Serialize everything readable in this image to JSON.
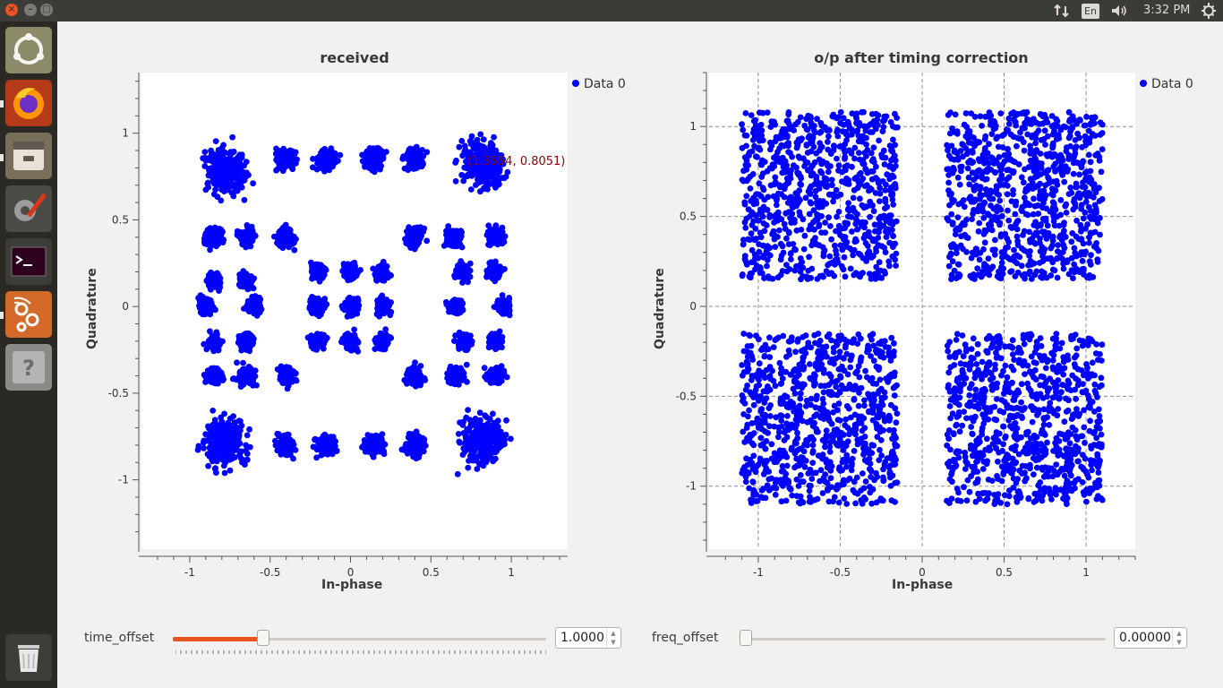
{
  "topbar": {
    "window_buttons": [
      "close",
      "minimize",
      "maximize"
    ],
    "language": "En",
    "clock": "3:32 PM",
    "icons": [
      "network-icon",
      "volume-icon",
      "power-icon"
    ]
  },
  "launcher": {
    "apps": [
      "ubuntu-dash-icon",
      "firefox-icon",
      "files-icon",
      "settings-icon",
      "terminal-icon",
      "gnuradio-icon",
      "help-icon",
      "trash-icon"
    ]
  },
  "plots": [
    {
      "title": "received",
      "xlabel": "In-phase",
      "ylabel": "Quadrature",
      "legend": "Data 0",
      "cursor_readout": "(1.3554, 0.8051)",
      "xticks": [
        "-1",
        "-0.5",
        "0",
        "0.5",
        "1"
      ],
      "yticks": [
        "1",
        "0.5",
        "0",
        "-0.5",
        "-1"
      ]
    },
    {
      "title": "o/p after timing correction",
      "xlabel": "In-phase",
      "ylabel": "Quadrature",
      "legend": "Data 0",
      "xticks": [
        "-1",
        "-0.5",
        "0",
        "0.5",
        "1"
      ],
      "yticks": [
        "1",
        "0.5",
        "0",
        "-0.5",
        "-1"
      ]
    }
  ],
  "controls": {
    "time_offset": {
      "label": "time_offset",
      "value": "1.0000",
      "level": 0.24
    },
    "freq_offset": {
      "label": "freq_offset",
      "value": "0.00000",
      "level": 0.0
    }
  },
  "chart_data": [
    {
      "type": "scatter",
      "title": "received",
      "xlabel": "In-phase",
      "ylabel": "Quadrature",
      "xlim": [
        -1.3,
        1.35
      ],
      "ylim": [
        -1.4,
        1.35
      ],
      "grid": false,
      "legend_position": "top-right",
      "series": [
        {
          "name": "Data 0",
          "color": "#0000ff",
          "clusters": [
            {
              "x": -0.78,
              "y": 0.78,
              "spread": 0.2
            },
            {
              "x": 0.82,
              "y": 0.82,
              "spread": 0.2
            },
            {
              "x": -0.78,
              "y": -0.78,
              "spread": 0.2
            },
            {
              "x": 0.82,
              "y": -0.78,
              "spread": 0.2
            },
            {
              "x": -0.85,
              "y": 0.4,
              "spread": 0.08
            },
            {
              "x": -0.65,
              "y": 0.4,
              "spread": 0.08
            },
            {
              "x": -0.4,
              "y": 0.4,
              "spread": 0.08
            },
            {
              "x": 0.4,
              "y": 0.4,
              "spread": 0.08
            },
            {
              "x": 0.65,
              "y": 0.4,
              "spread": 0.08
            },
            {
              "x": 0.9,
              "y": 0.4,
              "spread": 0.08
            },
            {
              "x": -0.85,
              "y": 0.15,
              "spread": 0.07
            },
            {
              "x": -0.65,
              "y": 0.15,
              "spread": 0.07
            },
            {
              "x": -0.2,
              "y": 0.2,
              "spread": 0.07
            },
            {
              "x": 0.0,
              "y": 0.2,
              "spread": 0.07
            },
            {
              "x": 0.2,
              "y": 0.2,
              "spread": 0.07
            },
            {
              "x": 0.7,
              "y": 0.2,
              "spread": 0.07
            },
            {
              "x": 0.9,
              "y": 0.2,
              "spread": 0.07
            },
            {
              "x": -0.9,
              "y": 0.0,
              "spread": 0.07
            },
            {
              "x": -0.6,
              "y": 0.0,
              "spread": 0.07
            },
            {
              "x": -0.2,
              "y": 0.0,
              "spread": 0.07
            },
            {
              "x": 0.0,
              "y": 0.0,
              "spread": 0.07
            },
            {
              "x": 0.2,
              "y": 0.0,
              "spread": 0.07
            },
            {
              "x": 0.65,
              "y": 0.0,
              "spread": 0.07
            },
            {
              "x": 0.95,
              "y": 0.0,
              "spread": 0.07
            },
            {
              "x": -0.85,
              "y": -0.2,
              "spread": 0.07
            },
            {
              "x": -0.65,
              "y": -0.2,
              "spread": 0.07
            },
            {
              "x": -0.2,
              "y": -0.2,
              "spread": 0.07
            },
            {
              "x": 0.0,
              "y": -0.2,
              "spread": 0.07
            },
            {
              "x": 0.2,
              "y": -0.2,
              "spread": 0.07
            },
            {
              "x": 0.7,
              "y": -0.2,
              "spread": 0.07
            },
            {
              "x": 0.9,
              "y": -0.2,
              "spread": 0.07
            },
            {
              "x": -0.85,
              "y": -0.4,
              "spread": 0.08
            },
            {
              "x": -0.65,
              "y": -0.4,
              "spread": 0.08
            },
            {
              "x": -0.4,
              "y": -0.4,
              "spread": 0.08
            },
            {
              "x": 0.4,
              "y": -0.4,
              "spread": 0.08
            },
            {
              "x": 0.65,
              "y": -0.4,
              "spread": 0.08
            },
            {
              "x": 0.9,
              "y": -0.4,
              "spread": 0.08
            },
            {
              "x": -0.4,
              "y": 0.85,
              "spread": 0.09
            },
            {
              "x": -0.15,
              "y": 0.85,
              "spread": 0.09
            },
            {
              "x": 0.15,
              "y": 0.85,
              "spread": 0.09
            },
            {
              "x": 0.4,
              "y": 0.85,
              "spread": 0.09
            },
            {
              "x": -0.4,
              "y": -0.8,
              "spread": 0.09
            },
            {
              "x": -0.15,
              "y": -0.8,
              "spread": 0.09
            },
            {
              "x": 0.15,
              "y": -0.8,
              "spread": 0.09
            },
            {
              "x": 0.4,
              "y": -0.8,
              "spread": 0.09
            }
          ]
        }
      ]
    },
    {
      "type": "scatter",
      "title": "o/p after timing correction",
      "xlabel": "In-phase",
      "ylabel": "Quadrature",
      "xlim": [
        -1.3,
        1.3
      ],
      "ylim": [
        -1.35,
        1.3
      ],
      "grid": true,
      "legend_position": "top-right",
      "series": [
        {
          "name": "Data 0",
          "color": "#0000ff",
          "regions": [
            {
              "x": [
                -1.1,
                -0.15
              ],
              "y": [
                0.15,
                1.08
              ]
            },
            {
              "x": [
                0.15,
                1.1
              ],
              "y": [
                0.15,
                1.08
              ]
            },
            {
              "x": [
                -1.1,
                -0.15
              ],
              "y": [
                -1.1,
                -0.15
              ]
            },
            {
              "x": [
                0.15,
                1.1
              ],
              "y": [
                -1.1,
                -0.15
              ]
            }
          ]
        }
      ]
    }
  ]
}
